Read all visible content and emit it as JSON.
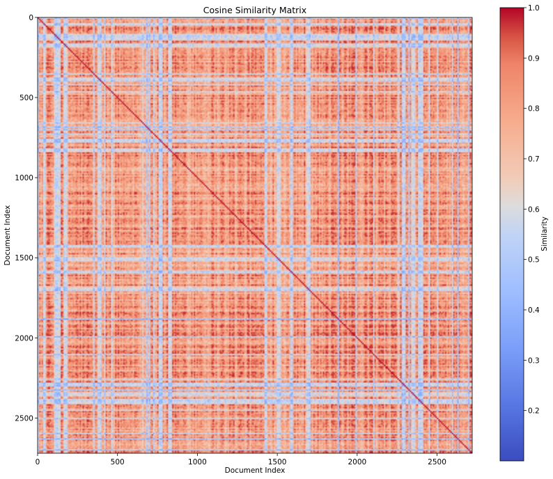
{
  "chart_data": {
    "type": "heatmap",
    "title": "Cosine Similarity Matrix",
    "xlabel": "Document Index",
    "ylabel": "Document Index",
    "n_documents": 2720,
    "xlim": [
      0,
      2720
    ],
    "ylim": [
      2720,
      0
    ],
    "x_ticks": [
      0,
      500,
      1000,
      1500,
      2000,
      2500
    ],
    "y_ticks": [
      0,
      500,
      1000,
      1500,
      2000,
      2500
    ],
    "x_tick_labels": [
      "0",
      "500",
      "1000",
      "1500",
      "2000",
      "2500"
    ],
    "y_tick_labels": [
      "0",
      "500",
      "1000",
      "1500",
      "2000",
      "2500"
    ],
    "colormap": "coolwarm",
    "diagonal_value": 1.0,
    "value_range": [
      0.1,
      1.0
    ],
    "typical_offdiagonal_range": [
      0.35,
      0.95
    ],
    "colorbar": {
      "label": "Similarity",
      "ticks": [
        0.2,
        0.3,
        0.4,
        0.5,
        0.6,
        0.7,
        0.8,
        0.9,
        1.0
      ],
      "tick_labels": [
        "0.2",
        "0.3",
        "0.4",
        "0.5",
        "0.6",
        "0.7",
        "0.8",
        "0.9",
        "1.0"
      ],
      "min": 0.1,
      "max": 1.0
    },
    "colors": {
      "low": "#3b4cc0",
      "mid": "#dddddd",
      "high": "#b40426"
    }
  }
}
